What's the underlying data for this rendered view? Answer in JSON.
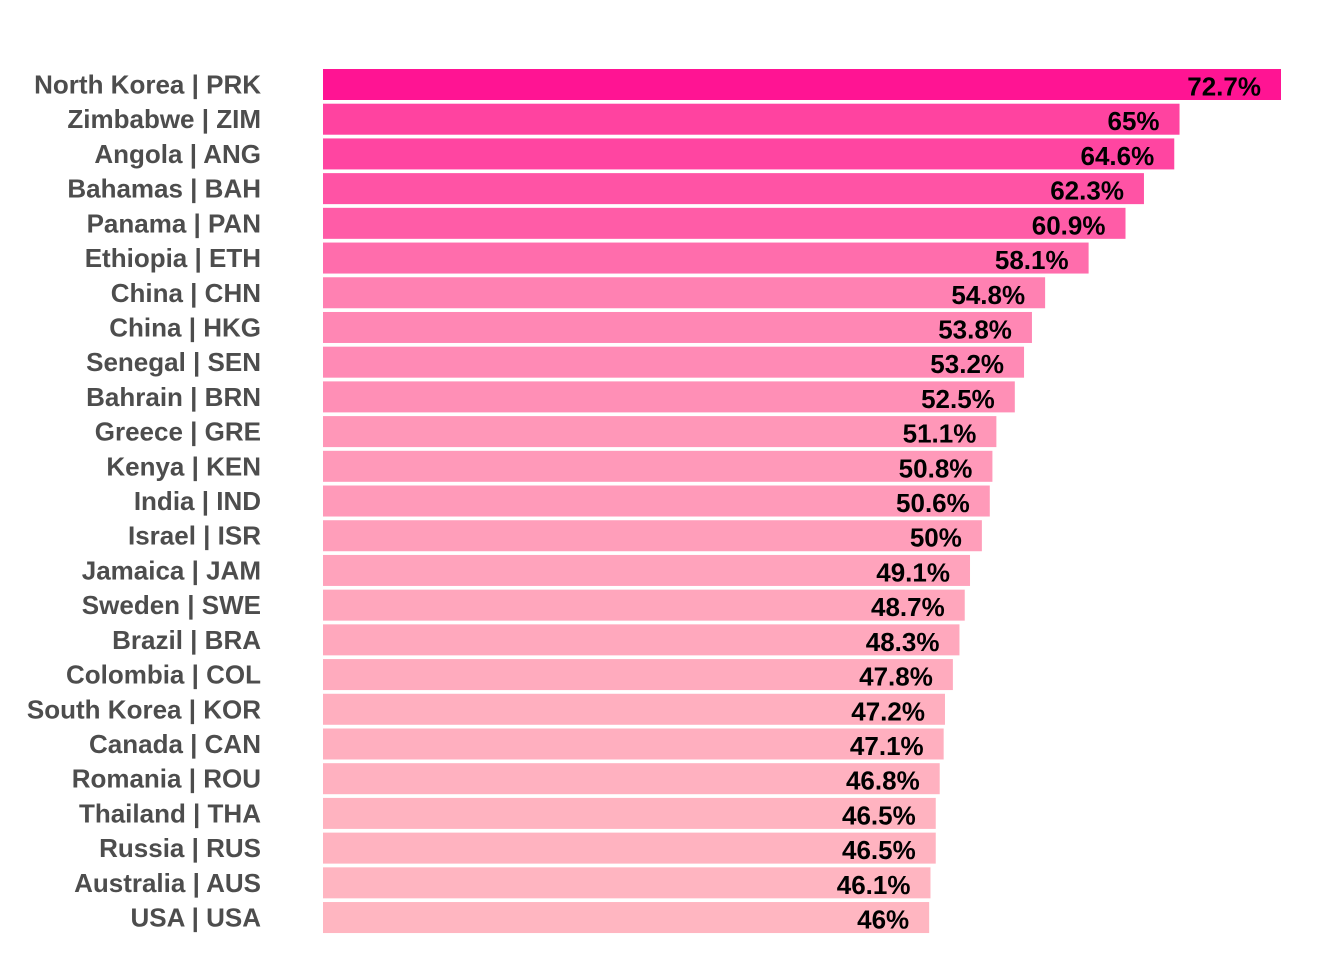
{
  "chart_data": {
    "type": "bar",
    "orientation": "horizontal",
    "title": "",
    "xlabel": "",
    "ylabel": "",
    "xlim": [
      0,
      72.7
    ],
    "grid": false,
    "legend": "none",
    "value_suffix": "%",
    "color_scale": {
      "low": "#ffb6c1",
      "high": "#ff1493"
    },
    "categories": [
      "North Korea | PRK",
      "Zimbabwe | ZIM",
      "Angola | ANG",
      "Bahamas | BAH",
      "Panama | PAN",
      "Ethiopia | ETH",
      "China | CHN",
      "China | HKG",
      "Senegal | SEN",
      "Bahrain | BRN",
      "Greece | GRE",
      "Kenya | KEN",
      "India | IND",
      "Israel | ISR",
      "Jamaica | JAM",
      "Sweden | SWE",
      "Brazil | BRA",
      "Colombia | COL",
      "South Korea | KOR",
      "Canada | CAN",
      "Romania | ROU",
      "Thailand | THA",
      "Russia | RUS",
      "Australia | AUS",
      "USA | USA"
    ],
    "values": [
      72.7,
      65,
      64.6,
      62.3,
      60.9,
      58.1,
      54.8,
      53.8,
      53.2,
      52.5,
      51.1,
      50.8,
      50.6,
      50,
      49.1,
      48.7,
      48.3,
      47.8,
      47.2,
      47.1,
      46.8,
      46.5,
      46.5,
      46.1,
      46
    ],
    "value_labels": [
      "72.7%",
      "65%",
      "64.6%",
      "62.3%",
      "60.9%",
      "58.1%",
      "54.8%",
      "53.8%",
      "53.2%",
      "52.5%",
      "51.1%",
      "50.8%",
      "50.6%",
      "50%",
      "49.1%",
      "48.7%",
      "48.3%",
      "47.8%",
      "47.2%",
      "47.1%",
      "46.8%",
      "46.5%",
      "46.5%",
      "46.1%",
      "46%"
    ]
  }
}
